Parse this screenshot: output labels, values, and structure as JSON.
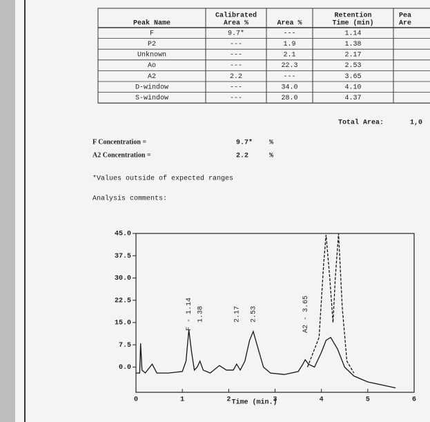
{
  "table": {
    "headers": [
      [
        "Peak Name"
      ],
      [
        "Calibrated",
        "Area %"
      ],
      [
        "Area %"
      ],
      [
        "Retention",
        "Time (min)"
      ],
      [
        "Pea",
        "Are"
      ]
    ],
    "rows": [
      [
        "F",
        "9.7*",
        "---",
        "1.14"
      ],
      [
        "P2",
        "---",
        "1.9",
        "1.38"
      ],
      [
        "Unknown",
        "---",
        "2.1",
        "2.17"
      ],
      [
        "Ao",
        "---",
        "22.3",
        "2.53"
      ],
      [
        "A2",
        "2.2",
        "---",
        "3.65"
      ],
      [
        "D-window",
        "---",
        "34.0",
        "4.10"
      ],
      [
        "S-window",
        "---",
        "28.0",
        "4.37"
      ]
    ]
  },
  "total_area": {
    "label": "Total Area:",
    "value": "1,0"
  },
  "concentrations": [
    {
      "label": "F Concentration =",
      "value": "9.7*",
      "unit": "%"
    },
    {
      "label": "A2 Concentration =",
      "value": "2.2",
      "unit": "%"
    }
  ],
  "note": "*Values outside of expected ranges",
  "comments": "Analysis comments:",
  "chart_data": {
    "type": "line",
    "xlabel": "Time (min.)",
    "xlim": [
      0,
      6
    ],
    "ylim": [
      -8.5,
      45
    ],
    "xticks": [
      0,
      1,
      2,
      3,
      4,
      5,
      6
    ],
    "yticks": [
      {
        "value": 0,
        "label": "0.0"
      },
      7.5,
      {
        "value": 15,
        "label": "15.0"
      },
      22.5,
      {
        "value": 30,
        "label": "30.0"
      },
      37.5,
      {
        "value": 45,
        "label": "45.0"
      }
    ],
    "series": [
      {
        "color": "#151515",
        "dashed": false,
        "x": [
          0,
          0.08,
          0.1,
          0.13,
          0.2,
          0.35,
          0.45,
          0.7,
          1.0,
          1.08,
          1.14,
          1.2,
          1.26,
          1.32,
          1.38,
          1.45,
          1.6,
          1.8,
          1.95,
          2.1,
          2.17,
          2.25,
          2.35,
          2.45,
          2.53,
          2.62,
          2.75,
          2.9,
          3.2,
          3.5,
          3.6,
          3.65,
          3.72,
          3.85,
          4.0,
          4.1,
          4.2,
          4.35,
          4.5,
          4.7,
          5.0,
          5.3,
          5.6
        ],
        "values": [
          -2,
          -2,
          8,
          -1,
          -2,
          1,
          -2,
          -2,
          -1.5,
          2,
          12.5,
          5,
          -1,
          0,
          2,
          -1,
          -2,
          0.5,
          -1,
          -1,
          1,
          -1,
          2,
          9,
          12,
          7,
          0,
          -2,
          -2.5,
          -1.5,
          1,
          2.5,
          1,
          0,
          5,
          9,
          10,
          6,
          0,
          -3,
          -5,
          -6,
          -7
        ]
      },
      {
        "color": "#151515",
        "dashed": true,
        "x": [
          3.7,
          3.95,
          4.05,
          4.1,
          4.18,
          4.25,
          4.3,
          4.37,
          4.45,
          4.55,
          4.7
        ],
        "values": [
          0,
          10,
          35,
          44.5,
          30,
          15,
          30,
          45,
          20,
          2,
          -2
        ]
      }
    ],
    "annotations": [
      {
        "text": "F - 1.14",
        "x": 1.14
      },
      {
        "text": "1.38",
        "x": 1.38
      },
      {
        "text": "2.17",
        "x": 2.17
      },
      {
        "text": "2.53",
        "x": 2.53
      },
      {
        "text": "A2 - 3.65",
        "x": 3.65
      }
    ]
  }
}
